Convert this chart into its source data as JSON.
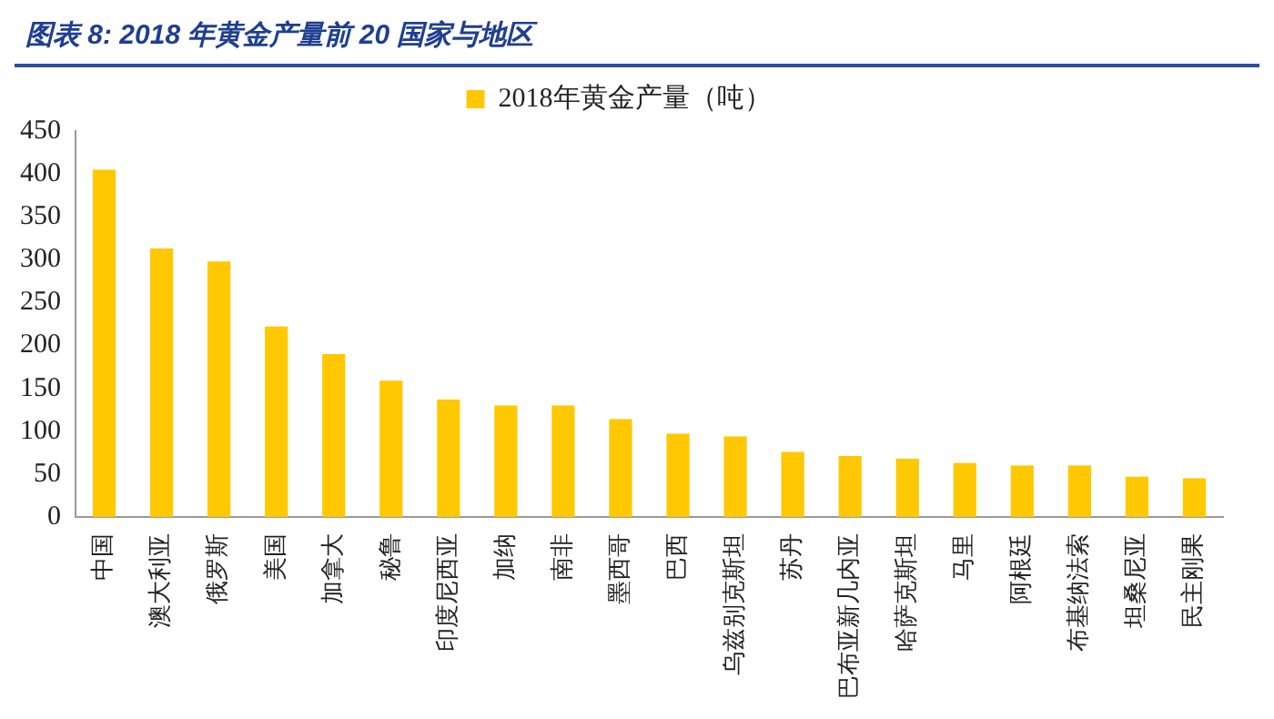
{
  "chart_data": {
    "type": "bar",
    "title": "图表 8:  2018 年黄金产量前 20 国家与地区",
    "categories": [
      "中国",
      "澳大利亚",
      "俄罗斯",
      "美国",
      "加拿大",
      "秘鲁",
      "印度尼西亚",
      "加纳",
      "南非",
      "墨西哥",
      "巴西",
      "乌兹别克斯坦",
      "苏丹",
      "巴布亚新几内亚",
      "哈萨克斯坦",
      "马里",
      "阿根廷",
      "布基纳法索",
      "坦桑尼亚",
      "民主刚果"
    ],
    "series": [
      {
        "name": "2018年黄金产量（吨）",
        "color": "#ffc800",
        "values": [
          405,
          313,
          298,
          222,
          190,
          159,
          137,
          130,
          130,
          114,
          97,
          94,
          76,
          71,
          68,
          63,
          60,
          60,
          47,
          45
        ]
      }
    ],
    "ylim": [
      0,
      450
    ],
    "yticks": [
      0,
      50,
      100,
      150,
      200,
      250,
      300,
      350,
      400,
      450
    ],
    "grid": false,
    "legend": "top"
  }
}
